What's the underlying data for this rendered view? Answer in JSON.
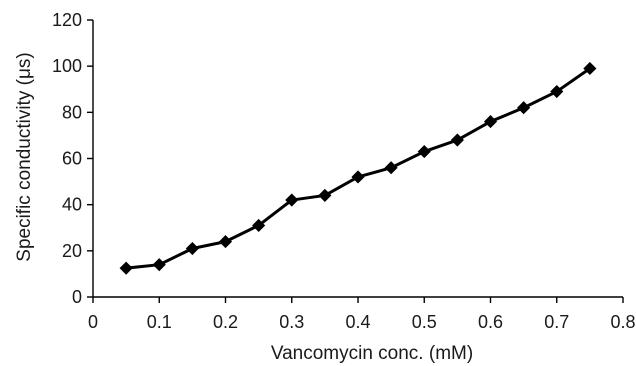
{
  "chart_data": {
    "type": "line",
    "title": "",
    "xlabel": "Vancomycin conc. (mM)",
    "ylabel": "Specific conductivity (μs)",
    "xlim": [
      0,
      0.8
    ],
    "ylim": [
      0,
      120
    ],
    "x_ticks": [
      "0",
      "0.1",
      "0.2",
      "0.3",
      "0.4",
      "0.5",
      "0.6",
      "0.7",
      "0.8"
    ],
    "y_ticks": [
      "0",
      "20",
      "40",
      "60",
      "80",
      "100",
      "120"
    ],
    "grid": false,
    "legend": "none",
    "marker": "diamond",
    "line_color": "#000000",
    "series": [
      {
        "x": [
          0.05,
          0.1,
          0.15,
          0.2,
          0.25,
          0.3,
          0.35,
          0.4,
          0.45,
          0.5,
          0.55,
          0.6,
          0.65,
          0.7,
          0.75
        ],
        "y": [
          12.5,
          14,
          21,
          24,
          31,
          42,
          44,
          52,
          56,
          63,
          68,
          76,
          82,
          89,
          99
        ]
      }
    ]
  }
}
